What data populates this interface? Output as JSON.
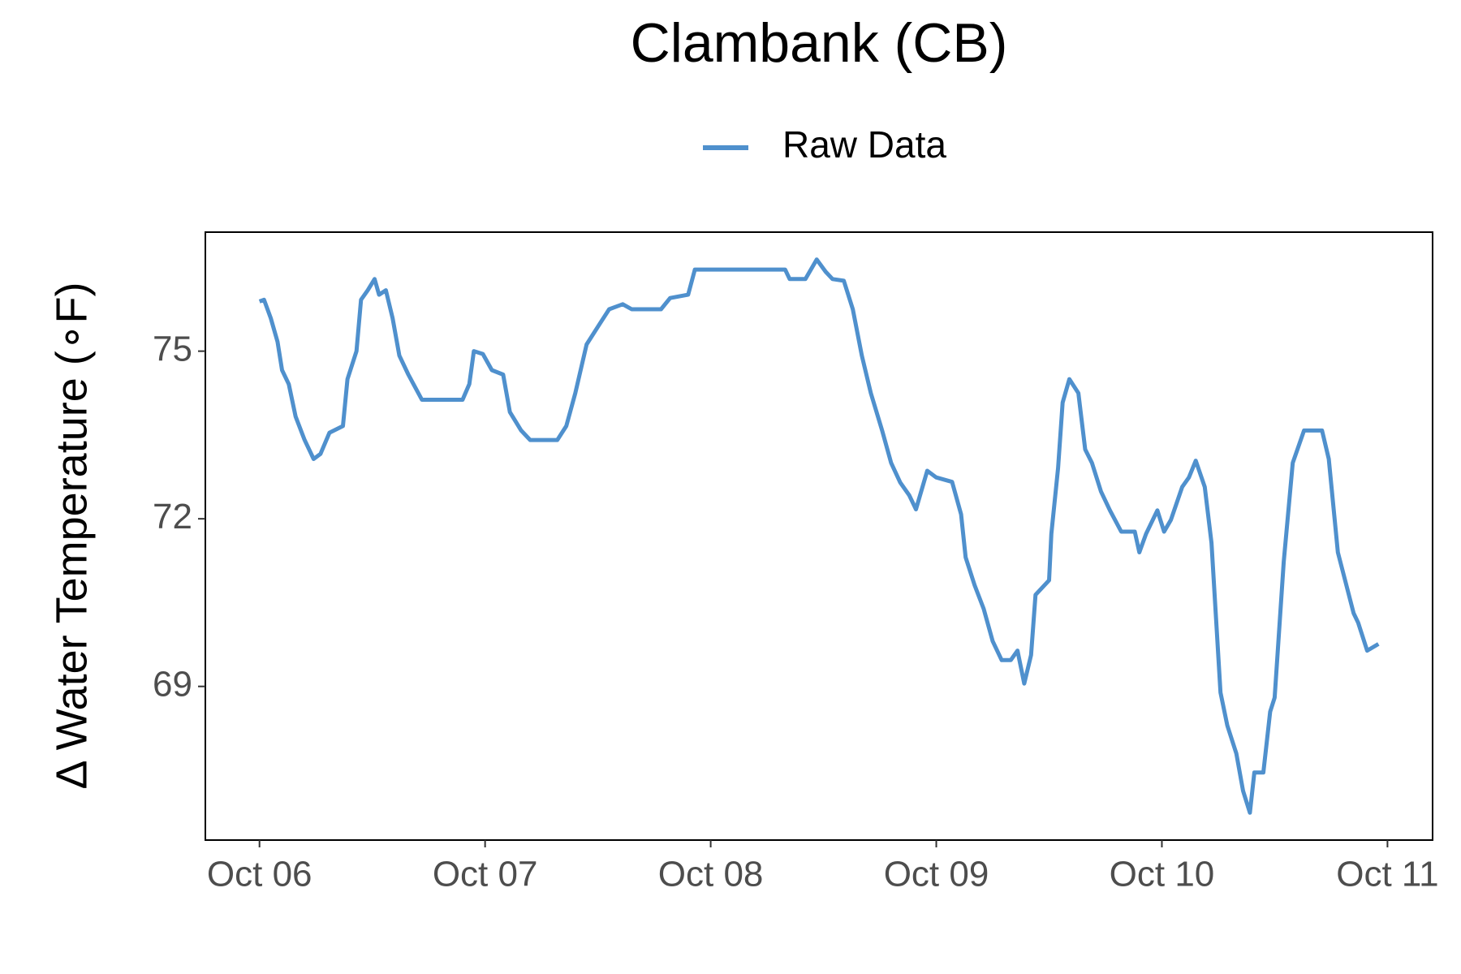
{
  "chart_data": {
    "type": "line",
    "title": "Clambank (CB)",
    "y_label": "Δ Water Temperature (∘F)",
    "x": [
      0.0,
      0.02,
      0.05,
      0.08,
      0.1,
      0.13,
      0.16,
      0.2,
      0.24,
      0.27,
      0.31,
      0.37,
      0.39,
      0.43,
      0.45,
      0.48,
      0.51,
      0.53,
      0.56,
      0.59,
      0.62,
      0.66,
      0.72,
      0.8,
      0.9,
      0.93,
      0.95,
      0.99,
      1.03,
      1.08,
      1.11,
      1.16,
      1.2,
      1.32,
      1.36,
      1.4,
      1.45,
      1.51,
      1.55,
      1.61,
      1.65,
      1.78,
      1.82,
      1.9,
      1.93,
      2.01,
      2.17,
      2.33,
      2.35,
      2.42,
      2.47,
      2.51,
      2.54,
      2.59,
      2.63,
      2.67,
      2.71,
      2.76,
      2.8,
      2.84,
      2.88,
      2.91,
      2.96,
      3.0,
      3.07,
      3.11,
      3.13,
      3.17,
      3.21,
      3.25,
      3.29,
      3.33,
      3.36,
      3.39,
      3.42,
      3.44,
      3.5,
      3.51,
      3.54,
      3.56,
      3.59,
      3.63,
      3.66,
      3.69,
      3.73,
      3.77,
      3.82,
      3.88,
      3.9,
      3.93,
      3.98,
      4.01,
      4.04,
      4.09,
      4.12,
      4.15,
      4.19,
      4.22,
      4.26,
      4.29,
      4.33,
      4.36,
      4.39,
      4.41,
      4.45,
      4.48,
      4.5,
      4.54,
      4.58,
      4.63,
      4.71,
      4.74,
      4.78,
      4.85,
      4.87,
      4.91,
      4.96
    ],
    "series": [
      {
        "name": "Raw Data",
        "color": "#4f90cd",
        "values": [
          75.89,
          75.92,
          75.59,
          75.17,
          74.66,
          74.41,
          73.83,
          73.41,
          73.07,
          73.16,
          73.54,
          73.66,
          74.5,
          75.0,
          75.92,
          76.09,
          76.29,
          76.01,
          76.09,
          75.59,
          74.92,
          74.58,
          74.13,
          74.13,
          74.13,
          74.41,
          75.0,
          74.95,
          74.66,
          74.58,
          73.91,
          73.58,
          73.41,
          73.41,
          73.66,
          74.25,
          75.12,
          75.5,
          75.75,
          75.84,
          75.75,
          75.75,
          75.95,
          76.01,
          76.46,
          76.46,
          76.46,
          76.46,
          76.29,
          76.29,
          76.64,
          76.42,
          76.29,
          76.26,
          75.75,
          74.92,
          74.25,
          73.58,
          73.0,
          72.65,
          72.42,
          72.17,
          72.86,
          72.74,
          72.66,
          72.08,
          71.31,
          70.81,
          70.39,
          69.81,
          69.47,
          69.47,
          69.64,
          69.05,
          69.56,
          70.64,
          70.9,
          71.73,
          72.91,
          74.08,
          74.5,
          74.25,
          73.24,
          73.0,
          72.49,
          72.15,
          71.77,
          71.77,
          71.4,
          71.73,
          72.15,
          71.77,
          71.98,
          72.57,
          72.74,
          73.04,
          72.57,
          71.57,
          68.89,
          68.3,
          67.8,
          67.13,
          66.74,
          67.46,
          67.46,
          68.55,
          68.8,
          71.23,
          73.0,
          73.58,
          73.58,
          73.07,
          71.4,
          70.31,
          70.14,
          69.64,
          69.76
        ]
      }
    ],
    "xlim": [
      -0.24,
      5.2
    ],
    "xticks": [
      {
        "value": 0,
        "label": "Oct 06"
      },
      {
        "value": 1,
        "label": "Oct 07"
      },
      {
        "value": 2,
        "label": "Oct 08"
      },
      {
        "value": 3,
        "label": "Oct 09"
      },
      {
        "value": 4,
        "label": "Oct 10"
      },
      {
        "value": 5,
        "label": "Oct 11"
      }
    ],
    "ylim": [
      66.25,
      77.13
    ],
    "yticks": [
      69,
      72,
      75
    ],
    "grid": false,
    "legend": "top"
  }
}
